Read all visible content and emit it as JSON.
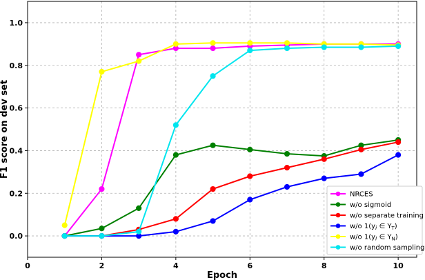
{
  "chart_data": {
    "type": "line",
    "xlabel": "Epoch",
    "ylabel": "F1 score on dev set",
    "xlim": [
      0,
      10.5
    ],
    "ylim": [
      -0.1,
      1.1
    ],
    "xticks": [
      0,
      2,
      4,
      6,
      8,
      10
    ],
    "yticks": [
      0.0,
      0.2,
      0.4,
      0.6,
      0.8,
      1.0
    ],
    "xtick_labels": [
      "0",
      "2",
      "4",
      "6",
      "8",
      "10"
    ],
    "ytick_labels": [
      "0.0",
      "0.2",
      "0.4",
      "0.6",
      "0.8",
      "1.0"
    ],
    "grid": true,
    "legend_position": "bottom-right",
    "x": [
      1,
      2,
      3,
      4,
      5,
      6,
      7,
      8,
      9,
      10
    ],
    "series": [
      {
        "name": "NRCES",
        "color": "#ff00ff",
        "values": [
          0.0,
          0.22,
          0.85,
          0.88,
          0.88,
          0.89,
          0.895,
          0.9,
          0.9,
          0.9
        ]
      },
      {
        "name": "w/o sigmoid",
        "color": "#008000",
        "values": [
          0.0,
          0.035,
          0.13,
          0.38,
          0.425,
          0.405,
          0.385,
          0.375,
          0.425,
          0.45
        ]
      },
      {
        "name": "w/o separate training",
        "color": "#ff0000",
        "values": [
          0.0,
          0.0,
          0.03,
          0.08,
          0.22,
          0.28,
          0.32,
          0.36,
          0.405,
          0.44
        ]
      },
      {
        "name": "w/o 1(yi ∈ YT)",
        "color": "#0000ff",
        "values": [
          0.0,
          0.0,
          0.0,
          0.02,
          0.07,
          0.17,
          0.23,
          0.27,
          0.29,
          0.38
        ]
      },
      {
        "name": "w/o 1(yi ∈ YN)",
        "color": "#ffff00",
        "values": [
          0.05,
          0.77,
          0.82,
          0.9,
          0.905,
          0.905,
          0.905,
          0.9,
          0.9,
          0.895
        ]
      },
      {
        "name": "w/o random sampling",
        "color": "#00e5ee",
        "values": [
          0.0,
          0.0,
          0.02,
          0.52,
          0.75,
          0.87,
          0.88,
          0.885,
          0.885,
          0.89
        ]
      }
    ],
    "legend_rich": [
      {
        "prefix": "",
        "main": "NRCES",
        "sub": ""
      },
      {
        "prefix": "",
        "main": "w/o sigmoid",
        "sub": ""
      },
      {
        "prefix": "",
        "main": "w/o separate training",
        "sub": ""
      },
      {
        "prefix": "w/o 1(y",
        "main": "i",
        "set": " ∈ Y",
        "sub": "T",
        "suffix": ")"
      },
      {
        "prefix": "w/o 1(y",
        "main": "i",
        "set": " ∈ Y",
        "sub": "N",
        "suffix": ")"
      },
      {
        "prefix": "",
        "main": "w/o random sampling",
        "sub": ""
      }
    ]
  }
}
